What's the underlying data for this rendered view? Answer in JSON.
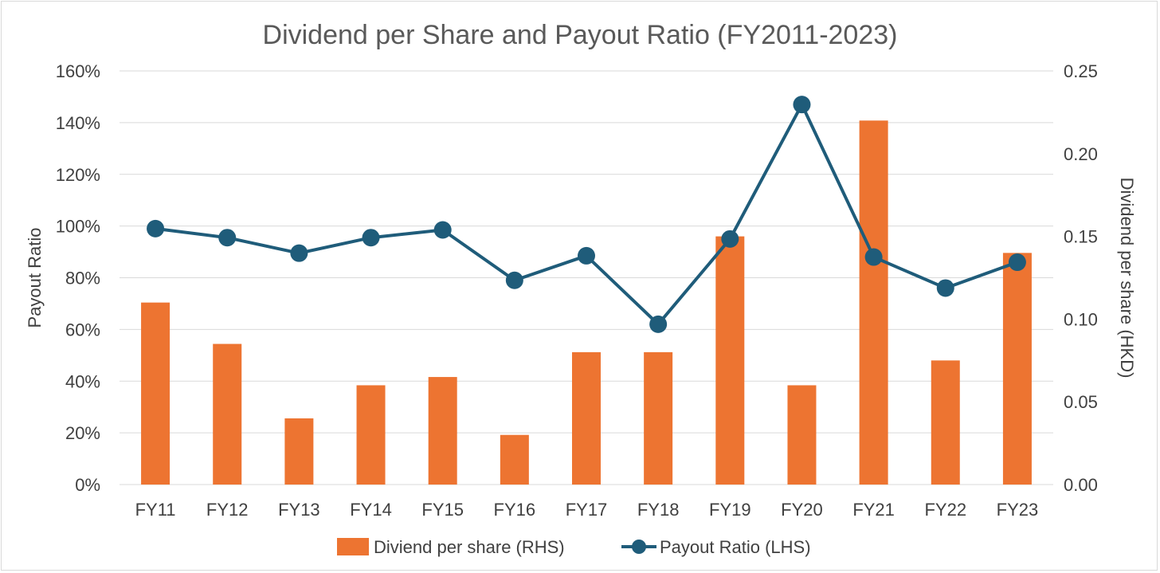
{
  "chart_data": {
    "type": "bar+line",
    "title": "Dividend per Share and Payout Ratio (FY2011-2023)",
    "categories": [
      "FY11",
      "FY12",
      "FY13",
      "FY14",
      "FY15",
      "FY16",
      "FY17",
      "FY18",
      "FY19",
      "FY20",
      "FY21",
      "FY22",
      "FY23"
    ],
    "series": [
      {
        "name": "Diviend per share (RHS)",
        "type": "bar",
        "axis": "right",
        "color": "#ED7431",
        "values": [
          0.11,
          0.085,
          0.04,
          0.06,
          0.065,
          0.03,
          0.08,
          0.08,
          0.15,
          0.06,
          0.22,
          0.075,
          0.14
        ]
      },
      {
        "name": "Payout Ratio (LHS)",
        "type": "line",
        "axis": "left",
        "color": "#1F5C7A",
        "marker": "circle",
        "values": [
          99,
          95.5,
          89.5,
          95.5,
          98.5,
          79,
          88.5,
          62,
          95,
          147,
          88,
          76,
          86
        ]
      }
    ],
    "left_axis": {
      "label": "Payout Ratio",
      "ylim": [
        0,
        160
      ],
      "ticks": [
        "0%",
        "20%",
        "40%",
        "60%",
        "80%",
        "100%",
        "120%",
        "140%",
        "160%"
      ]
    },
    "right_axis": {
      "label": "Dividend per share (HKD)",
      "ylim": [
        0,
        0.25
      ],
      "ticks": [
        "0.00",
        "0.05",
        "0.10",
        "0.15",
        "0.20",
        "0.25"
      ]
    },
    "grid": true,
    "legend_position": "bottom"
  }
}
